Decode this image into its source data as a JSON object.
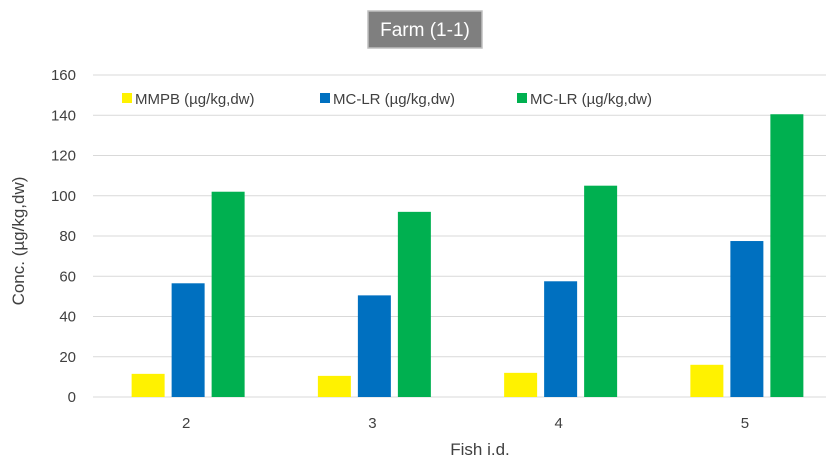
{
  "chart_data": {
    "type": "bar",
    "title": "Farm (1-1)",
    "xlabel": "Fish i.d.",
    "ylabel": "Conc. (µg/kg,dw)",
    "categories": [
      "2",
      "3",
      "4",
      "5"
    ],
    "ylim": [
      0,
      160
    ],
    "yticks": [
      0,
      20,
      40,
      60,
      80,
      100,
      120,
      140,
      160
    ],
    "grid": true,
    "legend_position": "top",
    "series": [
      {
        "name": "MMPB (µg/kg,dw)",
        "color": "#FFF200",
        "values": [
          11.5,
          10.5,
          12,
          16
        ]
      },
      {
        "name": "MC-LR (µg/kg,dw)",
        "color": "#0070C0",
        "values": [
          56.5,
          50.5,
          57.5,
          77.5
        ]
      },
      {
        "name": "MC-LR (µg/kg,dw)",
        "color": "#00B050",
        "values": [
          102,
          92,
          105,
          140.5
        ]
      }
    ]
  }
}
